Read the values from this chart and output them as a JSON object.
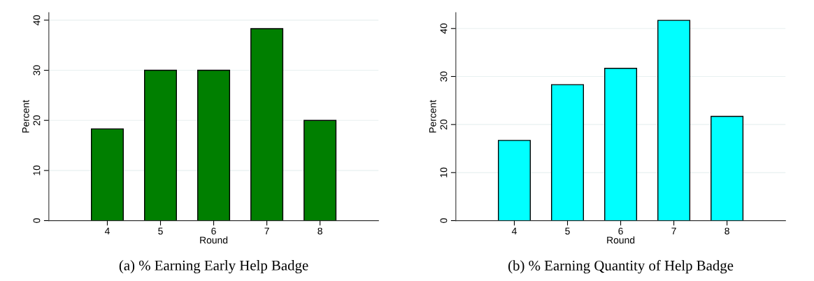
{
  "chart_data": [
    {
      "type": "bar",
      "title": "(a) % Earning Early Help Badge",
      "xlabel": "Round",
      "ylabel": "Percent",
      "x": [
        4,
        5,
        6,
        7,
        8
      ],
      "series": [
        {
          "color": "#007f00",
          "values": [
            18.3,
            30,
            30,
            38.3,
            20
          ]
        }
      ],
      "xlim": [
        2.9,
        9.1
      ],
      "xticks": [
        4,
        5,
        6,
        7,
        8
      ],
      "ylim": [
        0,
        41.5
      ],
      "yticks": [
        0,
        10,
        20,
        30,
        40
      ],
      "grid": "y"
    },
    {
      "type": "bar",
      "title": "(b) % Earning Quantity of Help Badge",
      "xlabel": "Round",
      "ylabel": "Percent",
      "x": [
        4,
        5,
        6,
        7,
        8
      ],
      "series": [
        {
          "color": "#00ffff",
          "values": [
            16.7,
            28.3,
            31.7,
            41.7,
            21.7
          ]
        }
      ],
      "xlim": [
        2.9,
        9.1
      ],
      "xticks": [
        4,
        5,
        6,
        7,
        8
      ],
      "ylim": [
        0,
        43.3
      ],
      "yticks": [
        0,
        10,
        20,
        30,
        40
      ],
      "grid": "y"
    }
  ]
}
